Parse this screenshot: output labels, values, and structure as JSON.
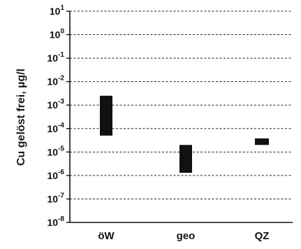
{
  "chart_data": {
    "type": "bar",
    "subtype": "floating-range",
    "ylabel": "Cu gelöst frei, µg/l",
    "xlabel": "",
    "title": "",
    "yscale": "log",
    "ylim": [
      1e-08,
      10
    ],
    "y_ticks": [
      {
        "value": 1e-08,
        "exp": "-8"
      },
      {
        "value": 1e-07,
        "exp": "-7"
      },
      {
        "value": 1e-06,
        "exp": "-6"
      },
      {
        "value": 1e-05,
        "exp": "-5"
      },
      {
        "value": 0.0001,
        "exp": "-4"
      },
      {
        "value": 0.001,
        "exp": "-3"
      },
      {
        "value": 0.01,
        "exp": "-2"
      },
      {
        "value": 0.1,
        "exp": "-1"
      },
      {
        "value": 1,
        "exp": "0"
      },
      {
        "value": 10,
        "exp": "1"
      }
    ],
    "tick_base": "10",
    "grid": "dashed horizontal at each decade",
    "categories": [
      "öW",
      "geo",
      "QZ"
    ],
    "ranges": [
      {
        "category": "öW",
        "low": 5e-05,
        "high": 0.0025
      },
      {
        "category": "geo",
        "low": 1.3e-06,
        "high": 2e-05
      },
      {
        "category": "QZ",
        "low": 2e-05,
        "high": 3.8e-05
      }
    ],
    "bar_color": "#111111"
  }
}
